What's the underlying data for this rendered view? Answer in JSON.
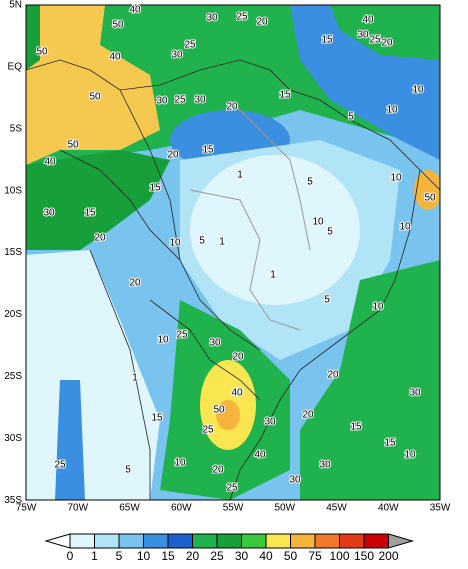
{
  "map": {
    "lat_labels": [
      "5N",
      "EQ",
      "5S",
      "10S",
      "15S",
      "20S",
      "25S",
      "30S",
      "35S"
    ],
    "lon_labels": [
      "75W",
      "70W",
      "65W",
      "60W",
      "55W",
      "50W",
      "45W",
      "40W",
      "35W"
    ],
    "contour_labels": [
      40,
      50,
      30,
      25,
      20,
      40,
      30,
      25,
      20,
      15,
      50,
      40,
      30,
      25,
      50,
      30,
      25,
      30,
      20,
      15,
      10,
      10,
      5,
      50,
      40,
      20,
      15,
      1,
      5,
      10,
      50,
      15,
      30,
      15,
      10,
      5,
      20,
      10,
      5,
      1,
      10,
      20,
      1,
      5,
      10,
      25,
      30,
      20,
      1,
      10,
      20,
      30,
      40,
      50,
      25,
      15,
      30,
      20,
      15,
      15,
      25,
      10,
      20,
      5,
      40,
      30,
      30,
      25,
      10
    ],
    "legend": {
      "levels": [
        0,
        1,
        5,
        10,
        15,
        20,
        25,
        30,
        40,
        50,
        75,
        100,
        150,
        200
      ],
      "colors": [
        "#ffffff",
        "#dff6fd",
        "#b2e4f8",
        "#78c4ef",
        "#3a8fe0",
        "#1c5fcf",
        "#1fb24d",
        "#17a03a",
        "#3cc83c",
        "#fae650",
        "#f5b43c",
        "#f07828",
        "#e13c14",
        "#c80000",
        "#a0a0a0"
      ]
    }
  }
}
